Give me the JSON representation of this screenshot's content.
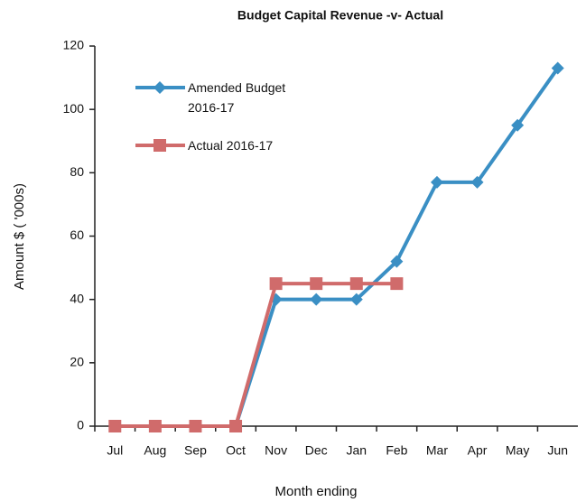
{
  "chart_data": {
    "type": "line",
    "title": "Budget Capital Revenue -v- Actual",
    "x_label": "Month ending",
    "y_label": "Amount $ ( '000s)",
    "categories": [
      "Jul",
      "Aug",
      "Sep",
      "Oct",
      "Nov",
      "Dec",
      "Jan",
      "Feb",
      "Mar",
      "Apr",
      "May",
      "Jun"
    ],
    "series": [
      {
        "name": "Amended Budget 2016-17",
        "color": "#3a8fc4",
        "marker": "diamond",
        "values": [
          0,
          0,
          0,
          0,
          40,
          40,
          40,
          52,
          77,
          77,
          95,
          113
        ]
      },
      {
        "name": "Actual 2016-17",
        "color": "#d06b6b",
        "marker": "square",
        "values": [
          0,
          0,
          0,
          0,
          45,
          45,
          45,
          45,
          null,
          null,
          null,
          null
        ]
      }
    ],
    "ylim": [
      0,
      120
    ],
    "yticks": [
      0,
      20,
      40,
      60,
      80,
      100,
      120
    ],
    "grid": false,
    "legend": "upper left"
  }
}
